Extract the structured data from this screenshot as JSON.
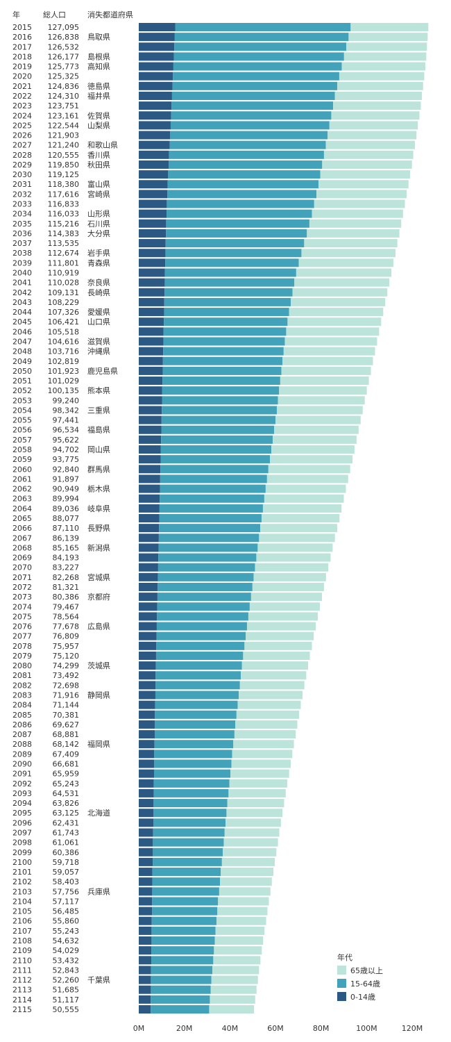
{
  "header": {
    "year": "年",
    "population": "総人口",
    "prefecture": "消失都道府県"
  },
  "chart_data": {
    "type": "bar",
    "orientation": "horizontal",
    "stacked": true,
    "xlim": [
      0,
      127000000
    ],
    "xticks": [
      0,
      20000000,
      40000000,
      60000000,
      80000000,
      100000000,
      120000000
    ],
    "xtick_labels": [
      "0M",
      "20M",
      "40M",
      "60M",
      "80M",
      "100M",
      "120M"
    ],
    "legend": {
      "title": "年代",
      "position": "bottom-right"
    },
    "series": [
      {
        "name": "0-14歳",
        "color": "#2c5984"
      },
      {
        "name": "15-64歳",
        "color": "#42a2b9"
      },
      {
        "name": "65歳以上",
        "color": "#bde4da"
      }
    ],
    "rows": [
      {
        "year": "2015",
        "total": "127,095",
        "pref": "",
        "values": [
          16000000,
          77000000,
          34100000
        ]
      },
      {
        "year": "2016",
        "total": "126,838",
        "pref": "鳥取県",
        "values": [
          15800000,
          76300000,
          34700000
        ]
      },
      {
        "year": "2017",
        "total": "126,532",
        "pref": "",
        "values": [
          15600000,
          75500000,
          35400000
        ]
      },
      {
        "year": "2018",
        "total": "126,177",
        "pref": "島根県",
        "values": [
          15400000,
          74700000,
          36100000
        ]
      },
      {
        "year": "2019",
        "total": "125,773",
        "pref": "高知県",
        "values": [
          15200000,
          73900000,
          36700000
        ]
      },
      {
        "year": "2020",
        "total": "125,325",
        "pref": "",
        "values": [
          15000000,
          73000000,
          37300000
        ]
      },
      {
        "year": "2021",
        "total": "124,836",
        "pref": "徳島県",
        "values": [
          14800000,
          72300000,
          37700000
        ]
      },
      {
        "year": "2022",
        "total": "124,310",
        "pref": "福井県",
        "values": [
          14600000,
          71500000,
          38200000
        ]
      },
      {
        "year": "2023",
        "total": "123,751",
        "pref": "",
        "values": [
          14400000,
          70900000,
          38500000
        ]
      },
      {
        "year": "2024",
        "total": "123,161",
        "pref": "佐賀県",
        "values": [
          14200000,
          70300000,
          38700000
        ]
      },
      {
        "year": "2025",
        "total": "122,544",
        "pref": "山梨県",
        "values": [
          14000000,
          69700000,
          38800000
        ]
      },
      {
        "year": "2026",
        "total": "121,903",
        "pref": "",
        "values": [
          13800000,
          69100000,
          39000000
        ]
      },
      {
        "year": "2027",
        "total": "121,240",
        "pref": "和歌山県",
        "values": [
          13600000,
          68500000,
          39100000
        ]
      },
      {
        "year": "2028",
        "total": "120,555",
        "pref": "香川県",
        "values": [
          13300000,
          68000000,
          39200000
        ]
      },
      {
        "year": "2029",
        "total": "119,850",
        "pref": "秋田県",
        "values": [
          13100000,
          67400000,
          39400000
        ]
      },
      {
        "year": "2030",
        "total": "119,125",
        "pref": "",
        "values": [
          12900000,
          66800000,
          39400000
        ]
      },
      {
        "year": "2031",
        "total": "118,380",
        "pref": "富山県",
        "values": [
          12700000,
          66200000,
          39500000
        ]
      },
      {
        "year": "2032",
        "total": "117,616",
        "pref": "宮崎県",
        "values": [
          12500000,
          65500000,
          39600000
        ]
      },
      {
        "year": "2033",
        "total": "116,833",
        "pref": "",
        "values": [
          12300000,
          64700000,
          39800000
        ]
      },
      {
        "year": "2034",
        "total": "116,033",
        "pref": "山形県",
        "values": [
          12200000,
          63800000,
          40000000
        ]
      },
      {
        "year": "2035",
        "total": "115,216",
        "pref": "石川県",
        "values": [
          12000000,
          62900000,
          40300000
        ]
      },
      {
        "year": "2036",
        "total": "114,383",
        "pref": "大分県",
        "values": [
          11900000,
          61900000,
          40600000
        ]
      },
      {
        "year": "2037",
        "total": "113,535",
        "pref": "",
        "values": [
          11800000,
          60800000,
          40900000
        ]
      },
      {
        "year": "2038",
        "total": "112,674",
        "pref": "岩手県",
        "values": [
          11700000,
          59700000,
          41300000
        ]
      },
      {
        "year": "2039",
        "total": "111,801",
        "pref": "青森県",
        "values": [
          11600000,
          58600000,
          41600000
        ]
      },
      {
        "year": "2040",
        "total": "110,919",
        "pref": "",
        "values": [
          11500000,
          57600000,
          41800000
        ]
      },
      {
        "year": "2041",
        "total": "110,028",
        "pref": "奈良県",
        "values": [
          11400000,
          56900000,
          41700000
        ]
      },
      {
        "year": "2042",
        "total": "109,131",
        "pref": "長崎県",
        "values": [
          11300000,
          56200000,
          41600000
        ]
      },
      {
        "year": "2043",
        "total": "108,229",
        "pref": "",
        "values": [
          11200000,
          55500000,
          41500000
        ]
      },
      {
        "year": "2044",
        "total": "107,326",
        "pref": "愛媛県",
        "values": [
          11100000,
          54900000,
          41300000
        ]
      },
      {
        "year": "2045",
        "total": "106,421",
        "pref": "山口県",
        "values": [
          11000000,
          54300000,
          41100000
        ]
      },
      {
        "year": "2046",
        "total": "105,518",
        "pref": "",
        "values": [
          10900000,
          53800000,
          40800000
        ]
      },
      {
        "year": "2047",
        "total": "104,616",
        "pref": "滋賀県",
        "values": [
          10800000,
          53300000,
          40500000
        ]
      },
      {
        "year": "2048",
        "total": "103,716",
        "pref": "沖縄県",
        "values": [
          10700000,
          52900000,
          40100000
        ]
      },
      {
        "year": "2049",
        "total": "102,819",
        "pref": "",
        "values": [
          10600000,
          52500000,
          39700000
        ]
      },
      {
        "year": "2050",
        "total": "101,923",
        "pref": "鹿児島県",
        "values": [
          10500000,
          52100000,
          39300000
        ]
      },
      {
        "year": "2051",
        "total": "101,029",
        "pref": "",
        "values": [
          10400000,
          51700000,
          38900000
        ]
      },
      {
        "year": "2052",
        "total": "100,135",
        "pref": "熊本県",
        "values": [
          10300000,
          51300000,
          38500000
        ]
      },
      {
        "year": "2053",
        "total": "99,240",
        "pref": "",
        "values": [
          10200000,
          50900000,
          38100000
        ]
      },
      {
        "year": "2054",
        "total": "98,342",
        "pref": "三重県",
        "values": [
          10100000,
          50500000,
          37700000
        ]
      },
      {
        "year": "2055",
        "total": "97,441",
        "pref": "",
        "values": [
          10000000,
          50000000,
          37400000
        ]
      },
      {
        "year": "2056",
        "total": "96,534",
        "pref": "福島県",
        "values": [
          9900000,
          49500000,
          37100000
        ]
      },
      {
        "year": "2057",
        "total": "95,622",
        "pref": "",
        "values": [
          9800000,
          49000000,
          36800000
        ]
      },
      {
        "year": "2058",
        "total": "94,702",
        "pref": "岡山県",
        "values": [
          9700000,
          48500000,
          36500000
        ]
      },
      {
        "year": "2059",
        "total": "93,775",
        "pref": "",
        "values": [
          9600000,
          48000000,
          36200000
        ]
      },
      {
        "year": "2060",
        "total": "92,840",
        "pref": "群馬県",
        "values": [
          9500000,
          47400000,
          35900000
        ]
      },
      {
        "year": "2061",
        "total": "91,897",
        "pref": "",
        "values": [
          9400000,
          46900000,
          35600000
        ]
      },
      {
        "year": "2062",
        "total": "90,949",
        "pref": "栃木県",
        "values": [
          9300000,
          46400000,
          35200000
        ]
      },
      {
        "year": "2063",
        "total": "89,994",
        "pref": "",
        "values": [
          9200000,
          45900000,
          34900000
        ]
      },
      {
        "year": "2064",
        "total": "89,036",
        "pref": "岐阜県",
        "values": [
          9100000,
          45400000,
          34500000
        ]
      },
      {
        "year": "2065",
        "total": "88,077",
        "pref": "",
        "values": [
          9000000,
          44900000,
          34200000
        ]
      },
      {
        "year": "2066",
        "total": "87,110",
        "pref": "長野県",
        "values": [
          8900000,
          44400000,
          33800000
        ]
      },
      {
        "year": "2067",
        "total": "86,139",
        "pref": "",
        "values": [
          8800000,
          44000000,
          33300000
        ]
      },
      {
        "year": "2068",
        "total": "85,165",
        "pref": "新潟県",
        "values": [
          8700000,
          43500000,
          32900000
        ]
      },
      {
        "year": "2069",
        "total": "84,193",
        "pref": "",
        "values": [
          8600000,
          43000000,
          32600000
        ]
      },
      {
        "year": "2070",
        "total": "83,227",
        "pref": "",
        "values": [
          8500000,
          42500000,
          32200000
        ]
      },
      {
        "year": "2071",
        "total": "82,268",
        "pref": "宮城県",
        "values": [
          8400000,
          42000000,
          31800000
        ]
      },
      {
        "year": "2072",
        "total": "81,321",
        "pref": "",
        "values": [
          8300000,
          41600000,
          31400000
        ]
      },
      {
        "year": "2073",
        "total": "80,386",
        "pref": "京都府",
        "values": [
          8200000,
          41100000,
          31100000
        ]
      },
      {
        "year": "2074",
        "total": "79,467",
        "pref": "",
        "values": [
          8100000,
          40600000,
          30800000
        ]
      },
      {
        "year": "2075",
        "total": "78,564",
        "pref": "",
        "values": [
          8000000,
          40100000,
          30500000
        ]
      },
      {
        "year": "2076",
        "total": "77,678",
        "pref": "広島県",
        "values": [
          7900000,
          39600000,
          30200000
        ]
      },
      {
        "year": "2077",
        "total": "76,809",
        "pref": "",
        "values": [
          7800000,
          39100000,
          29900000
        ]
      },
      {
        "year": "2078",
        "total": "75,957",
        "pref": "",
        "values": [
          7700000,
          38700000,
          29600000
        ]
      },
      {
        "year": "2079",
        "total": "75,120",
        "pref": "",
        "values": [
          7600000,
          38200000,
          29300000
        ]
      },
      {
        "year": "2080",
        "total": "74,299",
        "pref": "茨城県",
        "values": [
          7500000,
          37800000,
          29000000
        ]
      },
      {
        "year": "2081",
        "total": "73,492",
        "pref": "",
        "values": [
          7400000,
          37400000,
          28700000
        ]
      },
      {
        "year": "2082",
        "total": "72,698",
        "pref": "",
        "values": [
          7400000,
          37000000,
          28300000
        ]
      },
      {
        "year": "2083",
        "total": "71,916",
        "pref": "静岡県",
        "values": [
          7300000,
          36600000,
          28000000
        ]
      },
      {
        "year": "2084",
        "total": "71,144",
        "pref": "",
        "values": [
          7200000,
          36200000,
          27700000
        ]
      },
      {
        "year": "2085",
        "total": "70,381",
        "pref": "",
        "values": [
          7100000,
          35800000,
          27500000
        ]
      },
      {
        "year": "2086",
        "total": "69,627",
        "pref": "",
        "values": [
          7000000,
          35400000,
          27200000
        ]
      },
      {
        "year": "2087",
        "total": "68,881",
        "pref": "",
        "values": [
          7000000,
          35000000,
          26900000
        ]
      },
      {
        "year": "2088",
        "total": "68,142",
        "pref": "福岡県",
        "values": [
          6900000,
          34600000,
          26600000
        ]
      },
      {
        "year": "2089",
        "total": "67,409",
        "pref": "",
        "values": [
          6800000,
          34200000,
          26400000
        ]
      },
      {
        "year": "2090",
        "total": "66,681",
        "pref": "",
        "values": [
          6800000,
          33900000,
          26000000
        ]
      },
      {
        "year": "2091",
        "total": "65,959",
        "pref": "",
        "values": [
          6700000,
          33500000,
          25800000
        ]
      },
      {
        "year": "2092",
        "total": "65,243",
        "pref": "",
        "values": [
          6600000,
          33200000,
          25400000
        ]
      },
      {
        "year": "2093",
        "total": "64,531",
        "pref": "",
        "values": [
          6600000,
          32800000,
          25100000
        ]
      },
      {
        "year": "2094",
        "total": "63,826",
        "pref": "",
        "values": [
          6500000,
          32400000,
          24900000
        ]
      },
      {
        "year": "2095",
        "total": "63,125",
        "pref": "北海道",
        "values": [
          6400000,
          32100000,
          24600000
        ]
      },
      {
        "year": "2096",
        "total": "62,431",
        "pref": "",
        "values": [
          6400000,
          31700000,
          24300000
        ]
      },
      {
        "year": "2097",
        "total": "61,743",
        "pref": "",
        "values": [
          6300000,
          31400000,
          24000000
        ]
      },
      {
        "year": "2098",
        "total": "61,061",
        "pref": "",
        "values": [
          6200000,
          31100000,
          23800000
        ]
      },
      {
        "year": "2099",
        "total": "60,386",
        "pref": "",
        "values": [
          6200000,
          30700000,
          23500000
        ]
      },
      {
        "year": "2100",
        "total": "59,718",
        "pref": "",
        "values": [
          6100000,
          30400000,
          23200000
        ]
      },
      {
        "year": "2101",
        "total": "59,057",
        "pref": "",
        "values": [
          6000000,
          30000000,
          23100000
        ]
      },
      {
        "year": "2102",
        "total": "58,403",
        "pref": "",
        "values": [
          6000000,
          29700000,
          22700000
        ]
      },
      {
        "year": "2103",
        "total": "57,756",
        "pref": "兵庫県",
        "values": [
          5900000,
          29400000,
          22500000
        ]
      },
      {
        "year": "2104",
        "total": "57,117",
        "pref": "",
        "values": [
          5800000,
          29000000,
          22300000
        ]
      },
      {
        "year": "2105",
        "total": "56,485",
        "pref": "",
        "values": [
          5800000,
          28700000,
          22000000
        ]
      },
      {
        "year": "2106",
        "total": "55,860",
        "pref": "",
        "values": [
          5700000,
          28400000,
          21800000
        ]
      },
      {
        "year": "2107",
        "total": "55,243",
        "pref": "",
        "values": [
          5600000,
          28100000,
          21500000
        ]
      },
      {
        "year": "2108",
        "total": "54,632",
        "pref": "",
        "values": [
          5600000,
          27800000,
          21200000
        ]
      },
      {
        "year": "2109",
        "total": "54,029",
        "pref": "",
        "values": [
          5500000,
          27500000,
          21000000
        ]
      },
      {
        "year": "2110",
        "total": "53,432",
        "pref": "",
        "values": [
          5500000,
          27200000,
          20700000
        ]
      },
      {
        "year": "2111",
        "total": "52,843",
        "pref": "",
        "values": [
          5400000,
          26900000,
          20500000
        ]
      },
      {
        "year": "2112",
        "total": "52,260",
        "pref": "千葉県",
        "values": [
          5300000,
          26600000,
          20400000
        ]
      },
      {
        "year": "2113",
        "total": "51,685",
        "pref": "",
        "values": [
          5300000,
          26300000,
          20100000
        ]
      },
      {
        "year": "2114",
        "total": "51,117",
        "pref": "",
        "values": [
          5200000,
          26000000,
          19900000
        ]
      },
      {
        "year": "2115",
        "total": "50,555",
        "pref": "",
        "values": [
          5200000,
          25700000,
          19700000
        ]
      }
    ]
  }
}
